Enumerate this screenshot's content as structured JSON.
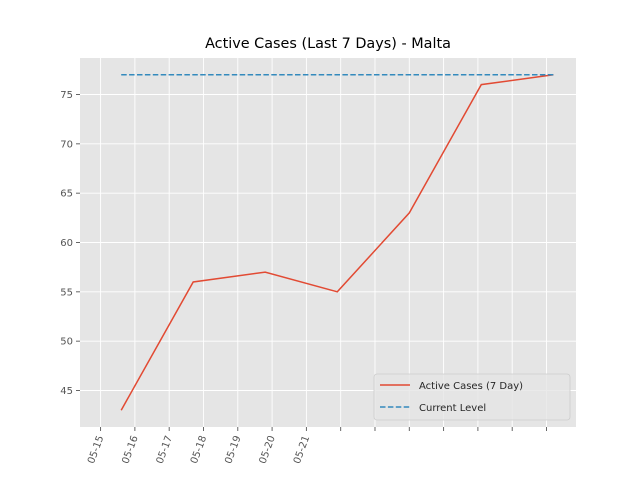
{
  "chart_data": {
    "type": "line",
    "title": "Active Cases (Last 7 Days) - Malta",
    "xlabel": "",
    "ylabel": "",
    "ylim": [
      41.3,
      78.7
    ],
    "xlim": [
      -0.6,
      13.86
    ],
    "yticks": [
      45,
      50,
      55,
      60,
      65,
      70,
      75
    ],
    "xticks": [
      {
        "x": 0,
        "label": "05-15"
      },
      {
        "x": 1,
        "label": "05-16"
      },
      {
        "x": 2,
        "label": "05-17"
      },
      {
        "x": 3,
        "label": "05-18"
      },
      {
        "x": 4,
        "label": "05-19"
      },
      {
        "x": 5,
        "label": "05-20"
      },
      {
        "x": 6,
        "label": "05-21"
      },
      {
        "x": 7,
        "label": ""
      },
      {
        "x": 8,
        "label": ""
      },
      {
        "x": 9,
        "label": ""
      },
      {
        "x": 10,
        "label": ""
      },
      {
        "x": 11,
        "label": ""
      },
      {
        "x": 12,
        "label": ""
      },
      {
        "x": 13,
        "label": ""
      }
    ],
    "grid": true,
    "legend_position": "lower-right",
    "series": [
      {
        "name": "Active Cases (7 Day)",
        "color": "#E24A33",
        "style": "solid",
        "x": [
          0.6,
          2.7,
          4.8,
          6.9,
          9.0,
          11.1,
          13.2
        ],
        "values": [
          43,
          56,
          57,
          55,
          63,
          76,
          77
        ]
      },
      {
        "name": "Current Level",
        "color": "#348ABD",
        "style": "dashed",
        "x": [
          0.6,
          13.2
        ],
        "values": [
          77,
          77
        ]
      }
    ]
  }
}
